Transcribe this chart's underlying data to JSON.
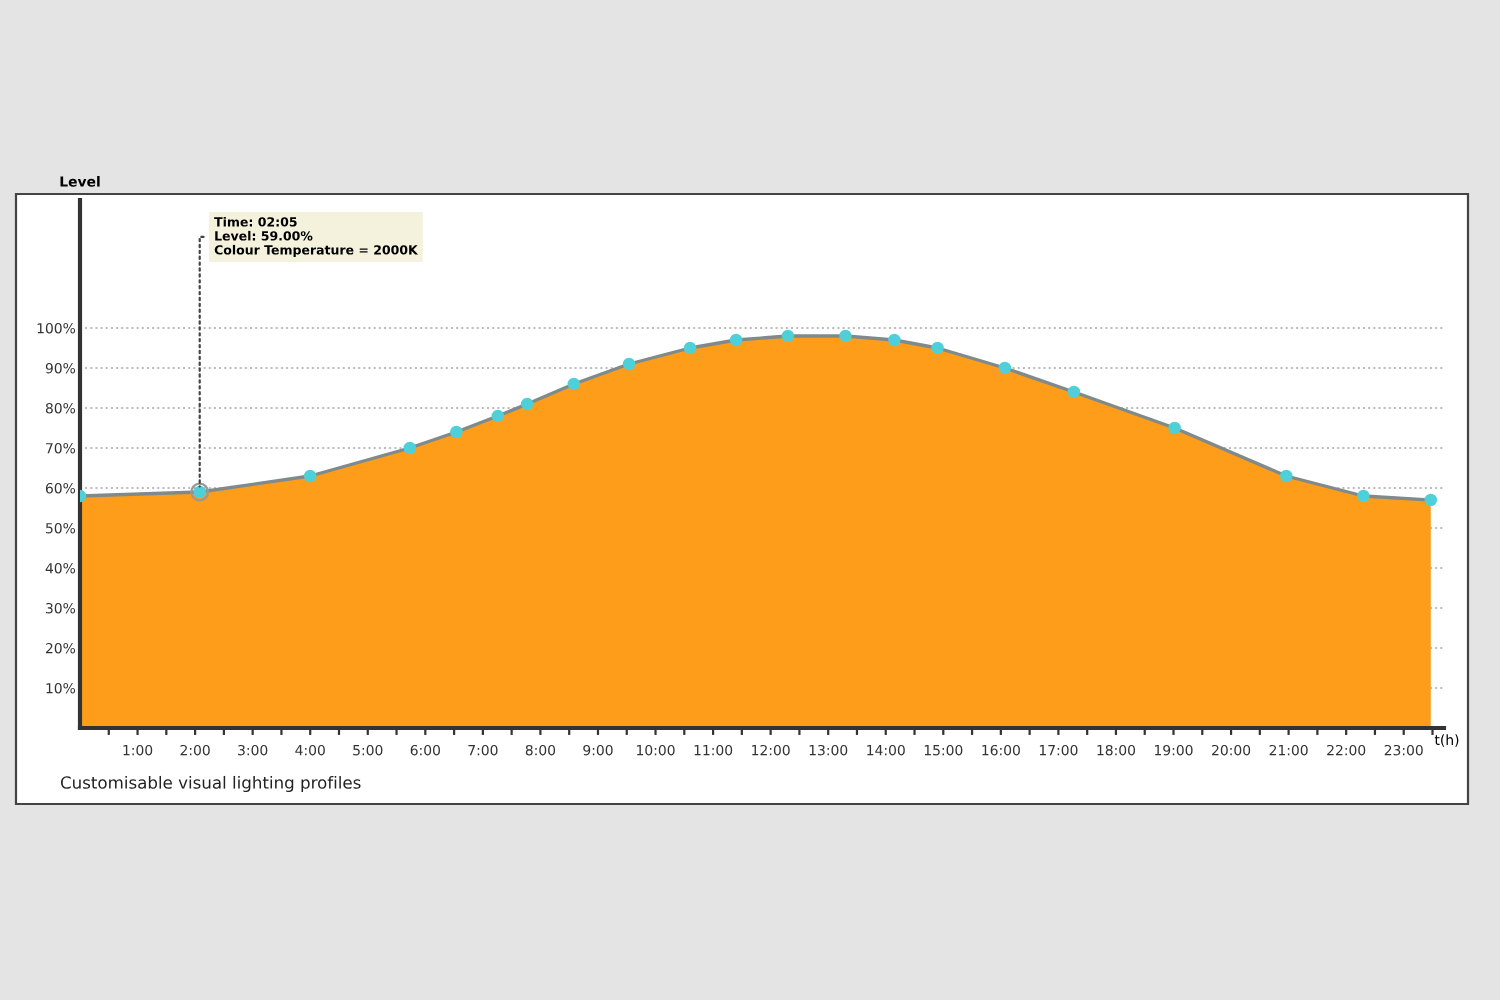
{
  "chart_data": {
    "type": "area",
    "x": [
      0,
      2.08,
      4.0,
      5.73,
      6.54,
      7.26,
      7.77,
      8.58,
      9.54,
      10.6,
      11.4,
      12.3,
      13.3,
      14.15,
      14.9,
      16.07,
      17.27,
      19.02,
      20.96,
      22.3,
      23.47
    ],
    "series": [
      {
        "color": "#7f8a8c",
        "values": [
          58,
          59,
          63,
          70,
          74,
          78,
          81,
          86,
          91,
          95,
          97,
          98,
          98,
          97,
          95,
          90,
          84,
          75,
          63,
          58,
          57
        ]
      }
    ],
    "marker": "circle",
    "xlabel": "t(h)",
    "ylabel": "Level",
    "xlim": [
      0,
      23.7
    ],
    "xticks": [
      {
        "value": 0.5,
        "label": null
      },
      {
        "value": 1,
        "label": "1:00"
      },
      {
        "value": 1.5,
        "label": null
      },
      {
        "value": 2,
        "label": "2:00"
      },
      {
        "value": 2.5,
        "label": null
      },
      {
        "value": 3,
        "label": "3:00"
      },
      {
        "value": 3.5,
        "label": null
      },
      {
        "value": 4,
        "label": "4:00"
      },
      {
        "value": 4.5,
        "label": null
      },
      {
        "value": 5,
        "label": "5:00"
      },
      {
        "value": 5.5,
        "label": null
      },
      {
        "value": 6,
        "label": "6:00"
      },
      {
        "value": 6.5,
        "label": null
      },
      {
        "value": 7,
        "label": "7:00"
      },
      {
        "value": 7.5,
        "label": null
      },
      {
        "value": 8,
        "label": "8:00"
      },
      {
        "value": 8.5,
        "label": null
      },
      {
        "value": 9,
        "label": "9:00"
      },
      {
        "value": 9.5,
        "label": null
      },
      {
        "value": 10,
        "label": "10:00"
      },
      {
        "value": 10.5,
        "label": null
      },
      {
        "value": 11,
        "label": "11:00"
      },
      {
        "value": 11.5,
        "label": null
      },
      {
        "value": 12,
        "label": "12:00"
      },
      {
        "value": 12.5,
        "label": null
      },
      {
        "value": 13,
        "label": "13:00"
      },
      {
        "value": 13.5,
        "label": null
      },
      {
        "value": 14,
        "label": "14:00"
      },
      {
        "value": 14.5,
        "label": null
      },
      {
        "value": 15,
        "label": "15:00"
      },
      {
        "value": 15.5,
        "label": null
      },
      {
        "value": 16,
        "label": "16:00"
      },
      {
        "value": 16.5,
        "label": null
      },
      {
        "value": 17,
        "label": "17:00"
      },
      {
        "value": 17.5,
        "label": null
      },
      {
        "value": 18,
        "label": "18:00"
      },
      {
        "value": 18.5,
        "label": null
      },
      {
        "value": 19,
        "label": "19:00"
      },
      {
        "value": 19.5,
        "label": null
      },
      {
        "value": 20,
        "label": "20:00"
      },
      {
        "value": 20.5,
        "label": null
      },
      {
        "value": 21,
        "label": "21:00"
      },
      {
        "value": 21.5,
        "label": null
      },
      {
        "value": 22,
        "label": "22:00"
      },
      {
        "value": 22.5,
        "label": null
      },
      {
        "value": 23,
        "label": "23:00"
      },
      {
        "value": 23.5,
        "label": null
      }
    ],
    "ylim": [
      0,
      132
    ],
    "yticks": [
      {
        "value": 10,
        "label": "10%"
      },
      {
        "value": 20,
        "label": "20%"
      },
      {
        "value": 30,
        "label": "30%"
      },
      {
        "value": 40,
        "label": "40%"
      },
      {
        "value": 50,
        "label": "50%"
      },
      {
        "value": 60,
        "label": "60%"
      },
      {
        "value": 70,
        "label": "70%"
      },
      {
        "value": 80,
        "label": "80%"
      },
      {
        "value": 90,
        "label": "90%"
      },
      {
        "value": 100,
        "label": "100%"
      }
    ],
    "grid": "y",
    "annotations": [
      {
        "text": "Time: 02:05\nLevel: 59.00%\nColour Temperature = 2000K",
        "x": 2.08,
        "y": 59
      },
      "Customisable visual lighting profiles"
    ]
  }
}
